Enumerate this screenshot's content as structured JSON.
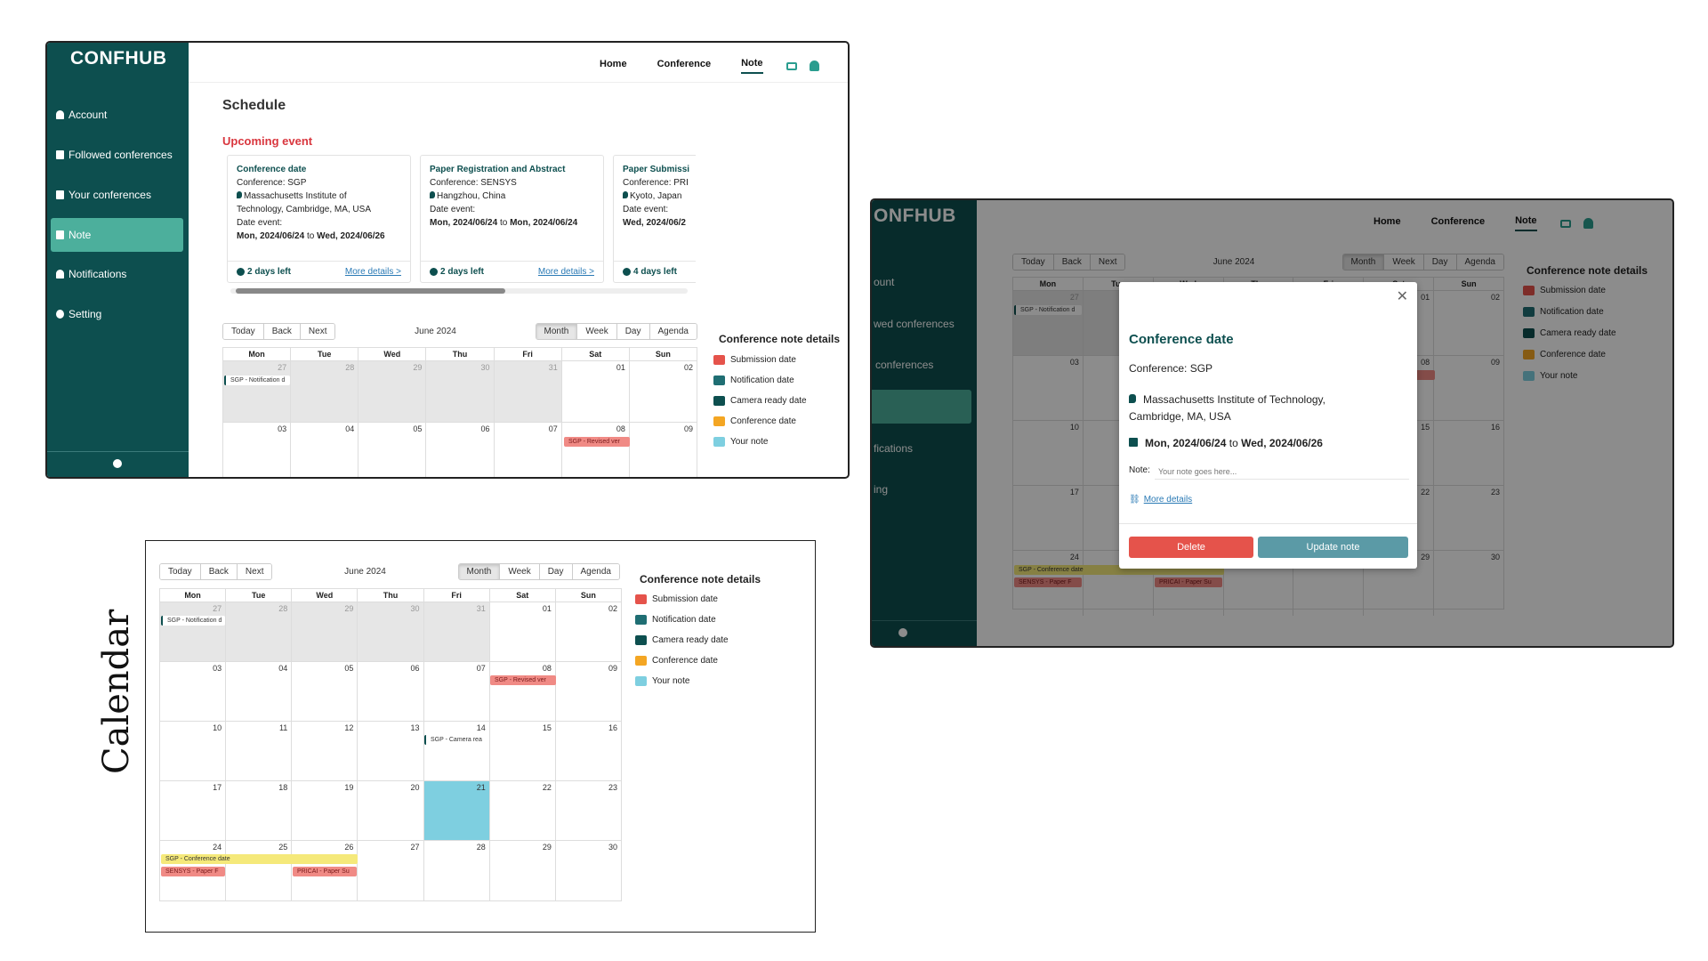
{
  "app": {
    "brand": "CONFHUB",
    "brand_partial": "ONFHUB"
  },
  "sidebar": {
    "items": [
      {
        "label": "Account",
        "icon": "person-icon"
      },
      {
        "label": "Followed conferences",
        "icon": "bookmark-icon"
      },
      {
        "label": "Your conferences",
        "icon": "document-icon"
      },
      {
        "label": "Note",
        "icon": "note-icon",
        "active": true
      },
      {
        "label": "Notifications",
        "icon": "bell-icon"
      },
      {
        "label": "Setting",
        "icon": "gear-icon"
      }
    ],
    "partial_items": [
      "ount",
      "wed conferences",
      "conferences",
      "",
      "fications",
      "ing"
    ]
  },
  "nav": {
    "home": "Home",
    "conference": "Conference",
    "note": "Note"
  },
  "page": {
    "title": "Schedule",
    "upcoming_label": "Upcoming event"
  },
  "events": [
    {
      "title": "Conference date",
      "conference": "Conference: SGP",
      "location_line1": "Massachusetts Institute of",
      "location_line2": "Technology, Cambridge, MA, USA",
      "date_label": "Date event:",
      "date_start": "Mon, 2024/06/24",
      "to": "to",
      "date_end": "Wed, 2024/06/26",
      "days_left": "2 days left",
      "more": "More details >"
    },
    {
      "title": "Paper Registration and Abstract",
      "conference": "Conference: SENSYS",
      "location_line1": "Hangzhou, China",
      "location_line2": "",
      "date_label": "Date event:",
      "date_start": "Mon, 2024/06/24",
      "to": "to",
      "date_end": "Mon, 2024/06/24",
      "days_left": "2 days left",
      "more": "More details >"
    },
    {
      "title": "Paper Submissi",
      "conference": "Conference: PRI",
      "location_line1": "Kyoto, Japan",
      "location_line2": "",
      "date_label": "Date event:",
      "date_start": "Wed, 2024/06/2",
      "to": "",
      "date_end": "",
      "days_left": "4 days left",
      "more": ""
    }
  ],
  "calendar": {
    "buttons": [
      "Today",
      "Back",
      "Next"
    ],
    "month_label": "June 2024",
    "views": [
      "Month",
      "Week",
      "Day",
      "Agenda"
    ],
    "selected_view": "Month",
    "weekdays": [
      "Mon",
      "Tue",
      "Wed",
      "Thu",
      "Fri",
      "Sat",
      "Sun"
    ],
    "weeks": [
      [
        "27",
        "28",
        "29",
        "30",
        "31",
        "01",
        "02"
      ],
      [
        "03",
        "04",
        "05",
        "06",
        "07",
        "08",
        "09"
      ],
      [
        "10",
        "11",
        "12",
        "13",
        "14",
        "15",
        "16"
      ],
      [
        "17",
        "18",
        "19",
        "20",
        "21",
        "22",
        "23"
      ],
      [
        "24",
        "25",
        "26",
        "27",
        "28",
        "29",
        "30"
      ]
    ],
    "events": {
      "notification": "SGP - Notification d",
      "revised": "SGP - Revised ver",
      "camera": "SGP - Camera rea",
      "conference": "SGP - Conference date",
      "sensys": "SENSYS - Paper F",
      "pricai": "PRICAI - Paper Su"
    }
  },
  "legend": {
    "title": "Conference note details",
    "items": [
      {
        "label": "Submission date",
        "color": "#e5534b"
      },
      {
        "label": "Notification date",
        "color": "#1f6e73"
      },
      {
        "label": "Camera ready date",
        "color": "#0d4f4f"
      },
      {
        "label": "Conference date",
        "color": "#f4a623"
      },
      {
        "label": "Your note",
        "color": "#7ecfe0"
      }
    ]
  },
  "modal": {
    "title": "Conference date",
    "conference_label": "Conference:",
    "conference_value": "SGP",
    "location_line1": "Massachusetts Institute of Technology,",
    "location_line2": "Cambridge, MA, USA",
    "date_start": "Mon, 2024/06/24",
    "to": "to",
    "date_end": "Wed, 2024/06/26",
    "note_label": "Note:",
    "note_placeholder": "Your note goes here...",
    "more_details": "More details",
    "delete": "Delete",
    "update": "Update note"
  },
  "side_label": "Calendar",
  "colors": {
    "primary": "#0d4f4f",
    "accent": "#4caf9c",
    "danger": "#e5534b",
    "update": "#5b9aa6"
  }
}
